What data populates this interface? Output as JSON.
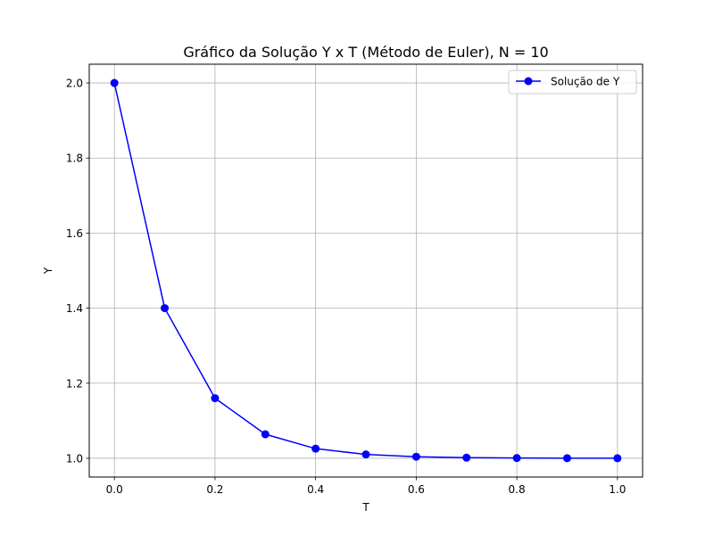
{
  "chart_data": {
    "type": "line",
    "title": "Gráfico da Solução Y x T (Método de Euler), N = 10",
    "xlabel": "T",
    "ylabel": "Y",
    "xlim": [
      -0.05,
      1.05
    ],
    "ylim": [
      0.95,
      2.05
    ],
    "xticks": [
      0.0,
      0.2,
      0.4,
      0.6,
      0.8,
      1.0
    ],
    "xtick_labels": [
      "0.0",
      "0.2",
      "0.4",
      "0.6",
      "0.8",
      "1.0"
    ],
    "yticks": [
      1.0,
      1.2,
      1.4,
      1.6,
      1.8,
      2.0
    ],
    "ytick_labels": [
      "1.0",
      "1.2",
      "1.4",
      "1.6",
      "1.8",
      "2.0"
    ],
    "grid": true,
    "legend_position": "top-right",
    "series": [
      {
        "name": "Solução de Y",
        "color": "#0000ff",
        "marker": "circle",
        "x": [
          0.0,
          0.1,
          0.2,
          0.3,
          0.4,
          0.5,
          0.6,
          0.7,
          0.8,
          0.9,
          1.0
        ],
        "y": [
          2.0,
          1.4,
          1.16,
          1.064,
          1.0256,
          1.01024,
          1.004096,
          1.0016384,
          1.00065536,
          1.000262144,
          1.0001048576
        ]
      }
    ]
  }
}
